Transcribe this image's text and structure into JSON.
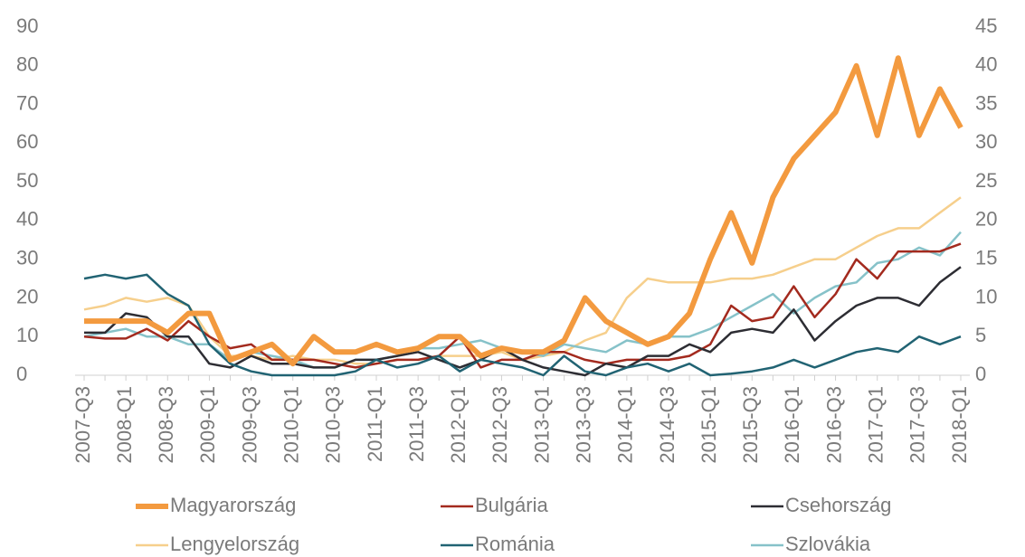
{
  "chart_data": {
    "type": "line",
    "categories": [
      "2007-Q3",
      null,
      "2008-Q1",
      null,
      "2008-Q3",
      null,
      "2009-Q1",
      null,
      "2009-Q3",
      null,
      "2010-Q1",
      null,
      "2010-Q3",
      null,
      "2011-Q1",
      null,
      "2011-Q3",
      null,
      "2012-Q1",
      null,
      "2012-Q3",
      null,
      "2013-Q1",
      null,
      "2013-Q3",
      null,
      "2014-Q1",
      null,
      "2014-Q3",
      null,
      "2015-Q1",
      null,
      "2015-Q3",
      null,
      "2016-Q1",
      null,
      "2016-Q3",
      null,
      "2017-Q1",
      null,
      "2017-Q3",
      null,
      "2018-Q1"
    ],
    "series": [
      {
        "name": "Magyarország",
        "color": "#f39a3f",
        "axis": "y",
        "values": [
          14,
          14,
          14,
          14,
          11,
          16,
          16,
          4,
          6,
          8,
          3,
          10,
          6,
          6,
          8,
          6,
          7,
          10,
          10,
          5,
          7,
          6,
          6,
          9,
          20,
          14,
          11,
          8,
          10,
          16,
          30,
          42,
          29,
          46,
          56,
          62,
          68,
          80,
          62,
          82,
          62,
          74,
          64
        ]
      },
      {
        "name": "Bulgária",
        "color": "#a32a1e",
        "axis": "y2",
        "values": [
          5,
          4.75,
          4.75,
          6,
          4.5,
          7,
          5,
          3.5,
          4,
          2,
          2,
          2,
          1.5,
          1,
          1.5,
          2,
          2,
          2.5,
          5,
          1,
          2,
          2,
          3,
          3,
          2,
          1.5,
          2,
          2,
          2,
          2.5,
          4,
          9,
          7,
          7.5,
          11.5,
          7.5,
          10.5,
          15,
          12.5,
          16,
          16,
          16,
          17
        ]
      },
      {
        "name": "Csehország",
        "color": "#2d2d33",
        "axis": "y2",
        "values": [
          5.5,
          5.5,
          8,
          7.5,
          5,
          5,
          1.5,
          1,
          2.5,
          1.5,
          1.5,
          1,
          1,
          2,
          2,
          2.5,
          3,
          2,
          1,
          2,
          3.5,
          2,
          1,
          0.5,
          0,
          1.5,
          1,
          2.5,
          2.5,
          4,
          3,
          5.5,
          6,
          5.5,
          8.5,
          4.5,
          7,
          9,
          10,
          10,
          9,
          12,
          14
        ]
      },
      {
        "name": "Lengyelország",
        "color": "#f6cf8c",
        "axis": "y2",
        "values": [
          8.5,
          9,
          10,
          9.5,
          10,
          9,
          5,
          2.5,
          2.5,
          2,
          2.5,
          2,
          2,
          1.5,
          1.5,
          2,
          2,
          2.5,
          2.5,
          2.5,
          3,
          2,
          2.5,
          3,
          4.5,
          5.5,
          10,
          12.5,
          12,
          12,
          12,
          12.5,
          12.5,
          13,
          14,
          15,
          15,
          16.5,
          18,
          19,
          19,
          21,
          23
        ]
      },
      {
        "name": "Románia",
        "color": "#216373",
        "axis": "y2",
        "values": [
          12.5,
          13,
          12.5,
          13,
          10.5,
          9,
          4,
          1.5,
          0.5,
          0,
          0,
          0,
          0,
          0.5,
          2,
          1,
          1.5,
          2.5,
          0.5,
          2,
          1.5,
          1,
          0,
          2.5,
          0.5,
          0,
          1,
          1.5,
          0.5,
          1.5,
          0,
          0.2,
          0.5,
          1,
          2,
          1,
          2,
          3,
          3.5,
          3,
          5,
          4,
          5
        ]
      },
      {
        "name": "Szlovákia",
        "color": "#86c2c9",
        "axis": "y2",
        "values": [
          5,
          5.5,
          6,
          5,
          5,
          4,
          4,
          2,
          3,
          2.5,
          2,
          1,
          1,
          2,
          2,
          2.5,
          3.5,
          3.5,
          4,
          4.5,
          3.5,
          3,
          2.5,
          4,
          3.5,
          3,
          4.5,
          4,
          5,
          5,
          6,
          7.5,
          9,
          10.5,
          8,
          10,
          11.5,
          12,
          14.5,
          15,
          16.5,
          15.5,
          18.5
        ]
      }
    ],
    "ylim": [
      0,
      90
    ],
    "yticks": [
      0,
      10,
      20,
      30,
      40,
      50,
      60,
      70,
      80,
      90
    ],
    "y2lim": [
      0,
      45
    ],
    "y2ticks": [
      0,
      5,
      10,
      15,
      20,
      25,
      30,
      35,
      40,
      45
    ],
    "grid": false
  }
}
